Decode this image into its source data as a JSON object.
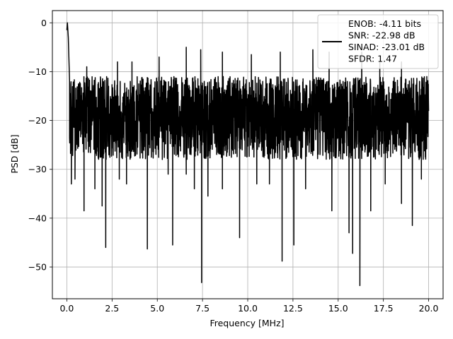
{
  "chart_data": {
    "type": "line",
    "xlabel": "Frequency [MHz]",
    "ylabel": "PSD [dB]",
    "xlim": [
      -0.8,
      20.8
    ],
    "ylim": [
      -56.5,
      2.5
    ],
    "xticks": [
      0.0,
      2.5,
      5.0,
      7.5,
      10.0,
      12.5,
      15.0,
      17.5,
      20.0
    ],
    "xtick_labels": [
      "0.0",
      "2.5",
      "5.0",
      "7.5",
      "10.0",
      "12.5",
      "15.0",
      "17.5",
      "20.0"
    ],
    "yticks": [
      0,
      -10,
      -20,
      -30,
      -40,
      -50
    ],
    "ytick_labels": [
      "0",
      "−10",
      "−20",
      "−30",
      "−40",
      "−50"
    ],
    "grid": true,
    "legend_position": "top-right",
    "series": [
      {
        "name": "ENOB: -4.11 bits\nSNR: -22.98 dB\nSINAD: -23.01 dB\nSFDR: 1.47",
        "color": "#000000",
        "band_upper_db": -11,
        "band_lower_db": -28,
        "dc_peak": [
          [
            0.0,
            -1.5
          ],
          [
            0.03,
            0.0
          ],
          [
            0.08,
            -3.0
          ],
          [
            0.15,
            -12.0
          ]
        ],
        "deep_nulls": [
          [
            0.25,
            -33
          ],
          [
            0.45,
            -32
          ],
          [
            0.95,
            -38.5
          ],
          [
            1.55,
            -34
          ],
          [
            1.95,
            -37.5
          ],
          [
            2.15,
            -46
          ],
          [
            2.9,
            -32
          ],
          [
            3.3,
            -33
          ],
          [
            4.45,
            -46.3
          ],
          [
            5.6,
            -31
          ],
          [
            5.85,
            -45.5
          ],
          [
            6.6,
            -31
          ],
          [
            7.05,
            -34
          ],
          [
            7.45,
            -53.2
          ],
          [
            7.8,
            -35.5
          ],
          [
            8.6,
            -34
          ],
          [
            9.55,
            -38
          ],
          [
            9.55,
            -44
          ],
          [
            10.5,
            -33
          ],
          [
            11.2,
            -33
          ],
          [
            11.9,
            -48.8
          ],
          [
            12.55,
            -45.5
          ],
          [
            13.2,
            -34
          ],
          [
            14.65,
            -38.5
          ],
          [
            15.6,
            -43
          ],
          [
            15.8,
            -47.2
          ],
          [
            16.2,
            -53.8
          ],
          [
            16.8,
            -38.5
          ],
          [
            17.6,
            -33
          ],
          [
            18.5,
            -37
          ],
          [
            19.1,
            -41.5
          ],
          [
            19.6,
            -32
          ]
        ],
        "high_spikes": [
          [
            1.1,
            -9
          ],
          [
            2.8,
            -8
          ],
          [
            3.6,
            -8
          ],
          [
            5.1,
            -7
          ],
          [
            6.6,
            -5
          ],
          [
            7.4,
            -5.5
          ],
          [
            8.6,
            -6
          ],
          [
            10.2,
            -6.5
          ],
          [
            11.8,
            -6
          ],
          [
            13.6,
            -5.5
          ],
          [
            14.5,
            -6
          ],
          [
            16.3,
            -6
          ],
          [
            17.3,
            -8
          ],
          [
            18.5,
            -8
          ],
          [
            19.9,
            -11
          ]
        ]
      }
    ]
  }
}
